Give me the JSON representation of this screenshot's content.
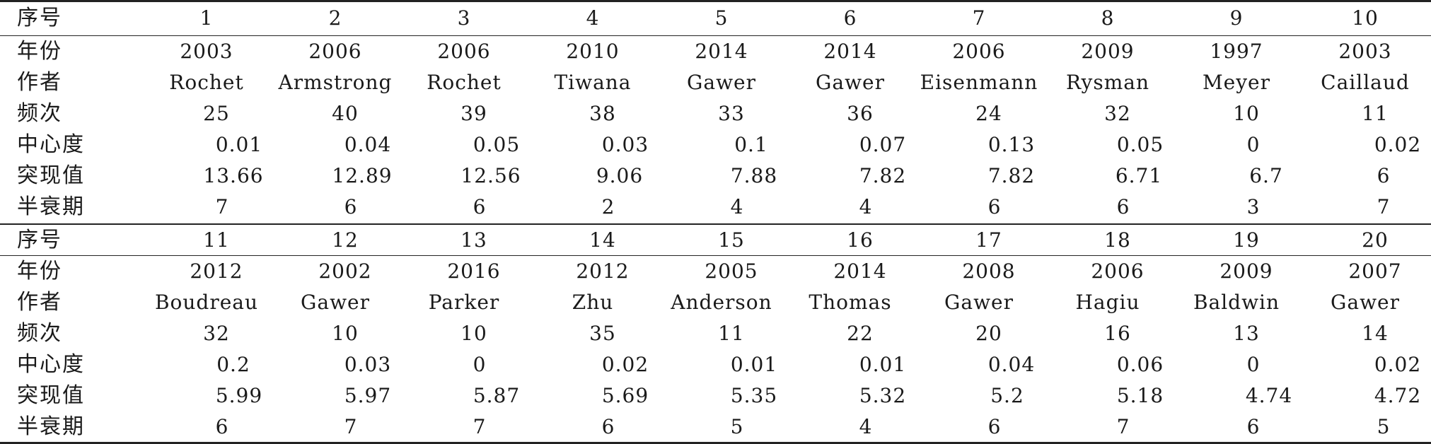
{
  "table": {
    "blocks": [
      {
        "header": {
          "label": "序号",
          "values": [
            "1",
            "2",
            "3",
            "4",
            "5",
            "6",
            "7",
            "8",
            "9",
            "10"
          ]
        },
        "rows": [
          {
            "label": "年份",
            "values": [
              "2003",
              "2006",
              "2006",
              "2010",
              "2014",
              "2014",
              "2006",
              "2009",
              "1997",
              "2003"
            ]
          },
          {
            "label": "作者",
            "values": [
              "Rochet",
              "Armstrong",
              "Rochet",
              "Tiwana",
              "Gawer",
              "Gawer",
              "Eisenmann",
              "Rysman",
              "Meyer",
              "Caillaud"
            ]
          },
          {
            "label": "频次",
            "values": [
              "25",
              "40",
              "39",
              "38",
              "33",
              "36",
              "24",
              "32",
              "10",
              "11"
            ]
          },
          {
            "label": "中心度",
            "values": [
              "0.01",
              "0.04",
              "0.05",
              "0.03",
              "0.1",
              "0.07",
              "0.13",
              "0.05",
              "0",
              "0.02"
            ]
          },
          {
            "label": "突现值",
            "values": [
              "13.66",
              "12.89",
              "12.56",
              "9.06",
              "7.88",
              "7.82",
              "7.82",
              "6.71",
              "6.7",
              "6"
            ]
          },
          {
            "label": "半衰期",
            "values": [
              "7",
              "6",
              "6",
              "2",
              "4",
              "4",
              "6",
              "6",
              "3",
              "7"
            ]
          }
        ]
      },
      {
        "header": {
          "label": "序号",
          "values": [
            "11",
            "12",
            "13",
            "14",
            "15",
            "16",
            "17",
            "18",
            "19",
            "20"
          ]
        },
        "rows": [
          {
            "label": "年份",
            "values": [
              "2012",
              "2002",
              "2016",
              "2012",
              "2005",
              "2014",
              "2008",
              "2006",
              "2009",
              "2007"
            ]
          },
          {
            "label": "作者",
            "values": [
              "Boudreau",
              "Gawer",
              "Parker",
              "Zhu",
              "Anderson",
              "Thomas",
              "Gawer",
              "Hagiu",
              "Baldwin",
              "Gawer"
            ]
          },
          {
            "label": "频次",
            "values": [
              "32",
              "10",
              "10",
              "35",
              "11",
              "22",
              "20",
              "16",
              "13",
              "14"
            ]
          },
          {
            "label": "中心度",
            "values": [
              "0.2",
              "0.03",
              "0",
              "0.02",
              "0.01",
              "0.01",
              "0.04",
              "0.06",
              "0",
              "0.02"
            ]
          },
          {
            "label": "突现值",
            "values": [
              "5.99",
              "5.97",
              "5.87",
              "5.69",
              "5.35",
              "5.32",
              "5.2",
              "5.18",
              "4.74",
              "4.72"
            ]
          },
          {
            "label": "半衰期",
            "values": [
              "6",
              "7",
              "7",
              "6",
              "5",
              "4",
              "6",
              "7",
              "6",
              "5"
            ]
          }
        ]
      }
    ]
  }
}
